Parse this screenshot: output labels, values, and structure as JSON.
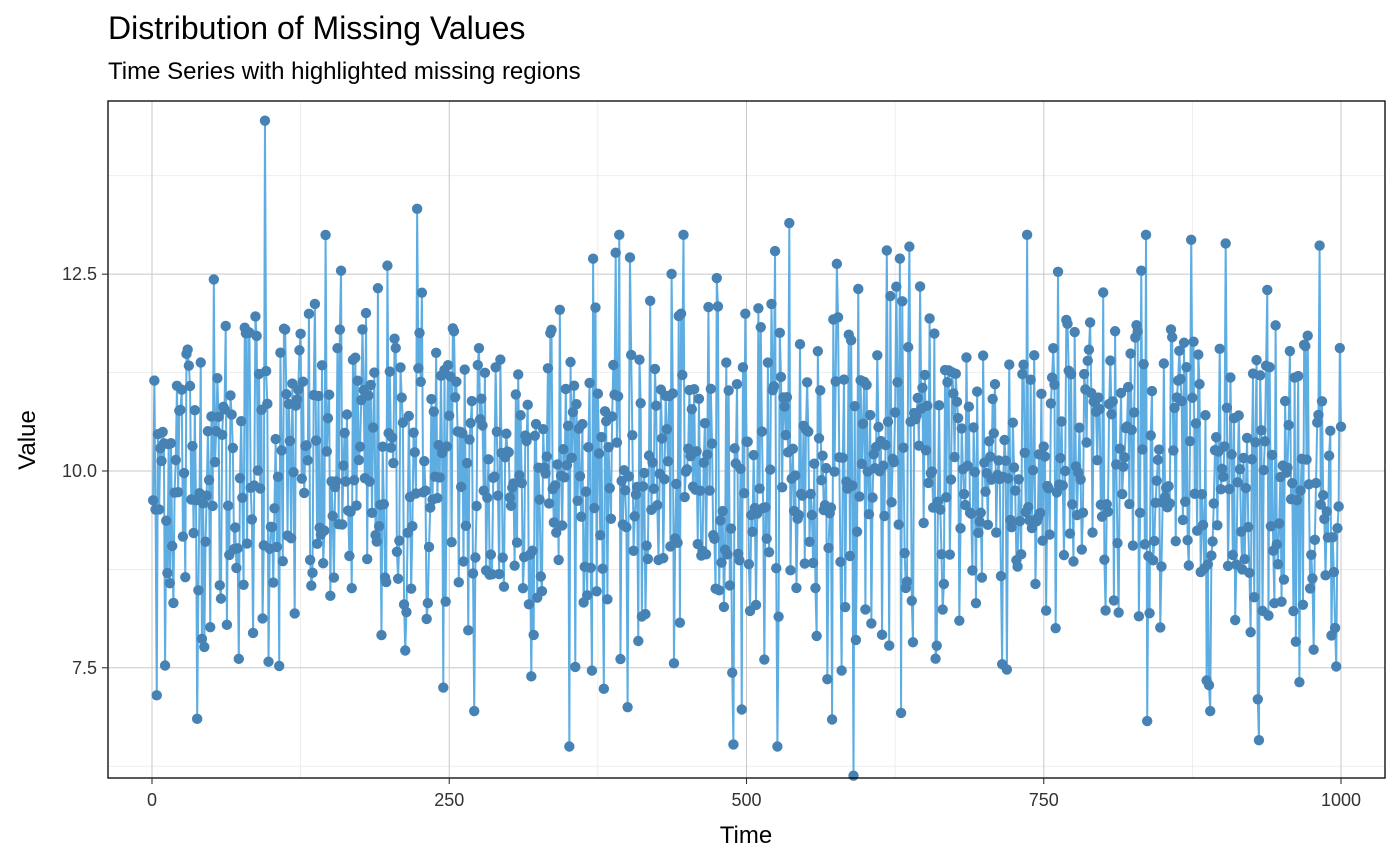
{
  "chart_data": {
    "type": "line",
    "title": "Distribution of Missing Values",
    "subtitle": "Time Series with highlighted missing regions",
    "xlabel": "Time",
    "ylabel": "Value",
    "xlim": [
      -37,
      1037
    ],
    "ylim": [
      6.1,
      14.7
    ],
    "x_ticks": [
      0,
      250,
      500,
      750,
      1000
    ],
    "y_ticks": [
      7.5,
      10.0,
      12.5
    ],
    "x_tick_labels": [
      "0",
      "250",
      "500",
      "750",
      "1000"
    ],
    "y_tick_labels": [
      "7.5",
      "10.0",
      "12.5"
    ],
    "grid": true,
    "line_color": "#5DADE2",
    "point_color": "#4682B4",
    "series": [
      {
        "x_start": 1,
        "x_step": 1,
        "approx_mean": 10.0,
        "approx_sd": 1.2,
        "highlighted_points": [
          {
            "x": 4,
            "y": 7.15
          },
          {
            "x": 95,
            "y": 14.45
          },
          {
            "x": 223,
            "y": 13.33
          },
          {
            "x": 271,
            "y": 6.95
          },
          {
            "x": 400,
            "y": 7.0
          },
          {
            "x": 496,
            "y": 6.97
          },
          {
            "x": 536,
            "y": 13.15
          },
          {
            "x": 590,
            "y": 6.13
          },
          {
            "x": 637,
            "y": 12.85
          },
          {
            "x": 836,
            "y": 13.0
          },
          {
            "x": 930,
            "y": 7.1
          }
        ]
      }
    ]
  }
}
